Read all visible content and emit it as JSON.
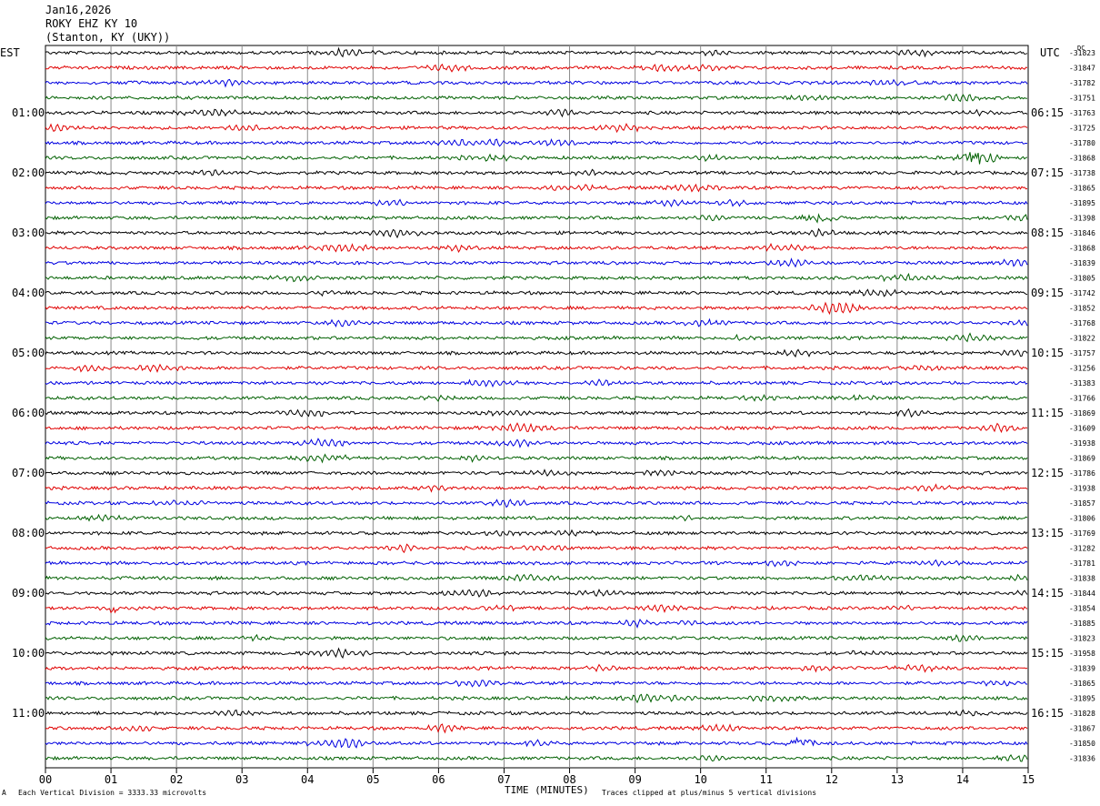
{
  "header": {
    "date": "Jan16,2026",
    "station": "ROKY EHZ KY 10",
    "location": "(Stanton, KY (UKY))"
  },
  "left_zone": "EST",
  "right_zone": "UTC",
  "dc_label": "DC",
  "footer": {
    "scale_note": "Each Vertical Division = 3333.33 microvolts",
    "xlabel": "TIME (MINUTES)",
    "clip_note": "Traces clipped at plus/minus 5 vertical divisions",
    "corner_mark": "A"
  },
  "colors": {
    "trace_cycle": [
      "#000000",
      "#e00000",
      "#0000e0",
      "#006000"
    ],
    "grid": "#8a8a8a"
  },
  "chart_data": {
    "type": "line",
    "subtype": "helicorder",
    "x_ticks": [
      "00",
      "01",
      "02",
      "03",
      "04",
      "05",
      "06",
      "07",
      "08",
      "09",
      "10",
      "11",
      "12",
      "13",
      "14",
      "15"
    ],
    "xlim": [
      0,
      15
    ],
    "trace_count": 48,
    "left_hour_labels": [
      "01:00",
      "02:00",
      "03:00",
      "04:00",
      "05:00",
      "06:00",
      "07:00",
      "08:00",
      "09:00",
      "10:00",
      "11:00"
    ],
    "right_hour_labels": [
      "06:15",
      "07:15",
      "08:15",
      "09:15",
      "10:15",
      "11:15",
      "12:15",
      "13:15",
      "14:15",
      "15:15",
      "16:15"
    ],
    "hour_label_trace_index": [
      4,
      8,
      12,
      16,
      20,
      24,
      28,
      32,
      36,
      40,
      44
    ],
    "dc_offsets": [
      "-31823",
      "-31847",
      "-31782",
      "-31751",
      "-31763",
      "-31725",
      "-31780",
      "-31868",
      "-31738",
      "-31865",
      "-31895",
      "-31398",
      "-31846",
      "-31868",
      "-31839",
      "-31805",
      "-31742",
      "-31852",
      "-31768",
      "-31822",
      "-31757",
      "-31256",
      "-31383",
      "-31766",
      "-31869",
      "-31609",
      "-31938",
      "-31869",
      "-31786",
      "-31938",
      "-31857",
      "-31806",
      "-31769",
      "-31282",
      "-31781",
      "-31838",
      "-31844",
      "-31854",
      "-31885",
      "-31823",
      "-31958",
      "-31839",
      "-31865",
      "-31895",
      "-31828",
      "-31867",
      "-31850",
      "-31836"
    ],
    "bursts": [
      {
        "trace": 7,
        "minute": 14.2,
        "amplitude": "high"
      },
      {
        "trace": 11,
        "minute": 11.8,
        "amplitude": "medium"
      },
      {
        "trace": 37,
        "minute": 1.1,
        "amplitude": "medium"
      },
      {
        "trace": 46,
        "minute": 11.5,
        "amplitude": "medium"
      }
    ]
  }
}
